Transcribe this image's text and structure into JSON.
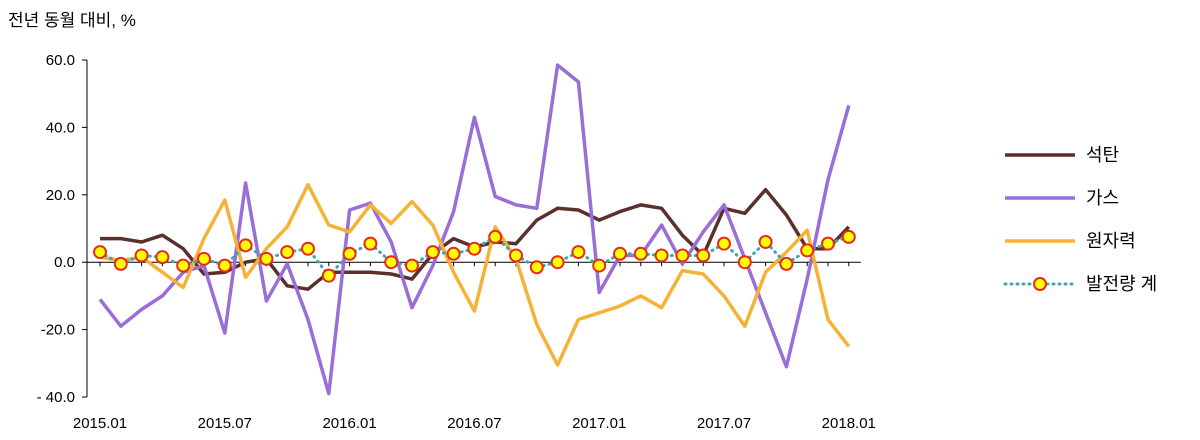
{
  "unit_label": "전년 동월 대비, %",
  "chart_data": {
    "type": "line",
    "x_tick_labels": [
      "2015.01",
      "2015.07",
      "2016.01",
      "2016.07",
      "2017.01",
      "2017.07",
      "2018.01"
    ],
    "y_tick_labels": [
      "60.0",
      "40.0",
      "20.0",
      "0.0",
      "-20.0",
      "- 40.0"
    ],
    "ylim": [
      -40,
      60
    ],
    "ytick_step": 20,
    "grid": false,
    "legend_position": "right",
    "categories": [
      "2015.01",
      "2015.02",
      "2015.03",
      "2015.04",
      "2015.05",
      "2015.06",
      "2015.07",
      "2015.08",
      "2015.09",
      "2015.10",
      "2015.11",
      "2015.12",
      "2016.01",
      "2016.02",
      "2016.03",
      "2016.04",
      "2016.05",
      "2016.06",
      "2016.07",
      "2016.08",
      "2016.09",
      "2016.10",
      "2016.11",
      "2016.12",
      "2017.01",
      "2017.02",
      "2017.03",
      "2017.04",
      "2017.05",
      "2017.06",
      "2017.07",
      "2017.08",
      "2017.09",
      "2017.10",
      "2017.11",
      "2017.12",
      "2018.01"
    ],
    "series": [
      {
        "name": "석탄",
        "color": "#5b2f2b",
        "style": "solid",
        "values": [
          7,
          7,
          6,
          8,
          4,
          -3.5,
          -3,
          0,
          1,
          -7,
          -8,
          -3,
          -3,
          -3,
          -3.5,
          -5,
          2.5,
          7,
          4.5,
          6,
          5.5,
          12.5,
          16,
          15.5,
          12.5,
          15,
          17,
          16,
          8,
          2,
          16,
          14.5,
          21.5,
          14,
          4,
          4,
          10.5
        ]
      },
      {
        "name": "가스",
        "color": "#9a6dd7",
        "style": "solid",
        "values": [
          -11,
          -19,
          -14,
          -10,
          -3,
          -1,
          -21,
          23.5,
          -11.5,
          -0.5,
          -17,
          -39,
          15.5,
          17.5,
          6,
          -13.5,
          -1,
          15,
          43,
          19.5,
          17,
          16,
          58.5,
          53.5,
          -9,
          2,
          2,
          11,
          -0.5,
          9,
          17,
          1,
          -15,
          -31,
          -5,
          24.5,
          46.5
        ]
      },
      {
        "name": "원자력",
        "color": "#f5b236",
        "style": "solid",
        "values": [
          1.5,
          0.5,
          1.5,
          -3,
          -7.5,
          7,
          18.5,
          -4.5,
          4,
          10.5,
          23,
          11,
          9,
          17,
          11.5,
          18,
          11,
          -3,
          -14.5,
          10.5,
          1,
          -18.5,
          -30.5,
          -17,
          -15,
          -13,
          -10,
          -13.5,
          -2.5,
          -3.5,
          -10,
          -19,
          -3,
          3,
          9.5,
          -17,
          -25
        ]
      },
      {
        "name": "발전량 계",
        "color": "#3fa9a5",
        "marker_fill": "#ffff00",
        "marker_edge": "#e8291f",
        "style": "dotted",
        "values": [
          3,
          -0.5,
          2,
          1.5,
          -1,
          1,
          -1,
          5,
          1,
          3,
          4,
          -4,
          2.5,
          5.5,
          0,
          -1,
          3,
          2.5,
          4,
          7.5,
          2,
          -1.5,
          0,
          3,
          -1,
          2.5,
          2.5,
          2,
          2,
          2,
          5.5,
          0,
          6,
          -0.5,
          3.5,
          5.5,
          7.5
        ]
      }
    ]
  }
}
